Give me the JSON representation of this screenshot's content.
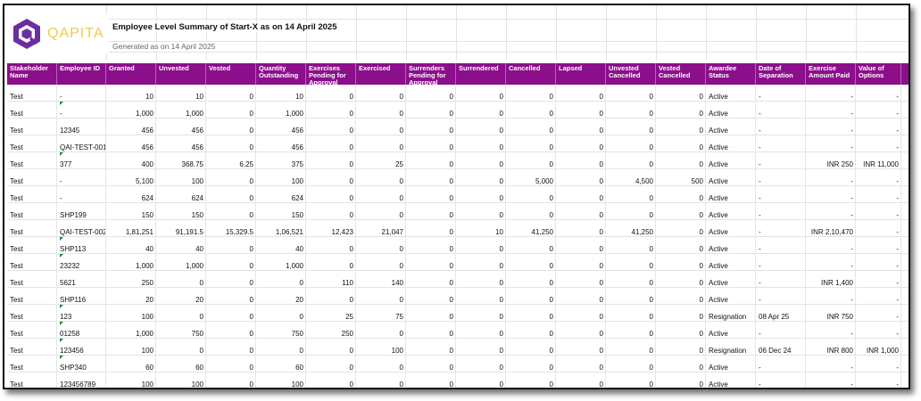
{
  "brand": {
    "name": "QAPITA",
    "logo_icon": "qapita-hexagon-logo-icon",
    "logo_color": "#6b2e9e",
    "text_color": "#f2c94c"
  },
  "report": {
    "title": "Employee Level Summary of Start-X as on 14 April 2025",
    "generated": "Generated as on 14 April 2025"
  },
  "colors": {
    "header_bg": "#8b0f8b",
    "header_text": "#ffffff",
    "flag": "#1a8a2e"
  },
  "columns": [
    "Stakeholder Name",
    "Employee ID",
    "Granted",
    "Unvested",
    "Vested",
    "Quantity Outstanding",
    "Exercises Pending for Approval",
    "Exercised",
    "Surrenders Pending for Approval",
    "Surrendered",
    "Cancelled",
    "Lapsed",
    "Unvested Cancelled",
    "Vested Cancelled",
    "Awardee Status",
    "Date of Separation",
    "Exercise Amount Paid",
    "Value of Options"
  ],
  "rows": [
    {
      "flag": false,
      "cells": [
        "Test",
        "-",
        "10",
        "10",
        "0",
        "10",
        "0",
        "0",
        "0",
        "0",
        "0",
        "0",
        "0",
        "0",
        "Active",
        "-",
        "-",
        "-"
      ]
    },
    {
      "flag": true,
      "cells": [
        "Test",
        "-",
        "1,000",
        "1,000",
        "0",
        "1,000",
        "0",
        "0",
        "0",
        "0",
        "0",
        "0",
        "0",
        "0",
        "Active",
        "-",
        "-",
        "-"
      ]
    },
    {
      "flag": false,
      "cells": [
        "Test",
        "12345",
        "456",
        "456",
        "0",
        "456",
        "0",
        "0",
        "0",
        "0",
        "0",
        "0",
        "0",
        "0",
        "Active",
        "-",
        "-",
        "-"
      ]
    },
    {
      "flag": false,
      "cells": [
        "Test",
        "QAI-TEST-001",
        "456",
        "456",
        "0",
        "456",
        "0",
        "0",
        "0",
        "0",
        "0",
        "0",
        "0",
        "0",
        "Active",
        "-",
        "-",
        "-"
      ]
    },
    {
      "flag": true,
      "cells": [
        "Test",
        "377",
        "400",
        "368.75",
        "6.25",
        "375",
        "0",
        "25",
        "0",
        "0",
        "0",
        "0",
        "0",
        "0",
        "Active",
        "-",
        "INR 250",
        "INR 11,000"
      ]
    },
    {
      "flag": false,
      "cells": [
        "Test",
        "-",
        "5,100",
        "100",
        "0",
        "100",
        "0",
        "0",
        "0",
        "0",
        "5,000",
        "0",
        "4,500",
        "500",
        "Active",
        "-",
        "-",
        "-"
      ]
    },
    {
      "flag": false,
      "cells": [
        "Test",
        "-",
        "624",
        "624",
        "0",
        "624",
        "0",
        "0",
        "0",
        "0",
        "0",
        "0",
        "0",
        "0",
        "Active",
        "-",
        "-",
        "-"
      ]
    },
    {
      "flag": false,
      "cells": [
        "Test",
        "SHP199",
        "150",
        "150",
        "0",
        "150",
        "0",
        "0",
        "0",
        "0",
        "0",
        "0",
        "0",
        "0",
        "Active",
        "-",
        "-",
        "-"
      ]
    },
    {
      "flag": false,
      "cells": [
        "Test",
        "QAI-TEST-002",
        "1,81,251",
        "91,191.5",
        "15,329.5",
        "1,06,521",
        "12,423",
        "21,047",
        "0",
        "10",
        "41,250",
        "0",
        "41,250",
        "0",
        "Active",
        "-",
        "INR 2,10,470",
        "-"
      ]
    },
    {
      "flag": true,
      "cells": [
        "Test",
        "SHP113",
        "40",
        "40",
        "0",
        "40",
        "0",
        "0",
        "0",
        "0",
        "0",
        "0",
        "0",
        "0",
        "Active",
        "-",
        "-",
        "-"
      ]
    },
    {
      "flag": true,
      "cells": [
        "Test",
        "23232",
        "1,000",
        "1,000",
        "0",
        "1,000",
        "0",
        "0",
        "0",
        "0",
        "0",
        "0",
        "0",
        "0",
        "Active",
        "-",
        "-",
        "-"
      ]
    },
    {
      "flag": false,
      "cells": [
        "Test",
        "5621",
        "250",
        "0",
        "0",
        "0",
        "110",
        "140",
        "0",
        "0",
        "0",
        "0",
        "0",
        "0",
        "Active",
        "-",
        "INR 1,400",
        "-"
      ]
    },
    {
      "flag": false,
      "cells": [
        "Test",
        "SHP116",
        "20",
        "20",
        "0",
        "20",
        "0",
        "0",
        "0",
        "0",
        "0",
        "0",
        "0",
        "0",
        "Active",
        "-",
        "-",
        "-"
      ]
    },
    {
      "flag": true,
      "cells": [
        "Test",
        "123",
        "100",
        "0",
        "0",
        "0",
        "25",
        "75",
        "0",
        "0",
        "0",
        "0",
        "0",
        "0",
        "Resignation",
        "08 Apr 25",
        "INR 750",
        "-"
      ]
    },
    {
      "flag": true,
      "cells": [
        "Test",
        "01258",
        "1,000",
        "750",
        "0",
        "750",
        "250",
        "0",
        "0",
        "0",
        "0",
        "0",
        "0",
        "0",
        "Active",
        "-",
        "-",
        "-"
      ]
    },
    {
      "flag": true,
      "cells": [
        "Test",
        "123456",
        "100",
        "0",
        "0",
        "0",
        "0",
        "100",
        "0",
        "0",
        "0",
        "0",
        "0",
        "0",
        "Resignation",
        "06 Dec 24",
        "INR 800",
        "INR 1,000"
      ]
    },
    {
      "flag": true,
      "cells": [
        "Test",
        "SHP340",
        "60",
        "60",
        "0",
        "60",
        "0",
        "0",
        "0",
        "0",
        "0",
        "0",
        "0",
        "0",
        "Active",
        "-",
        "-",
        "-"
      ]
    },
    {
      "flag": false,
      "cells": [
        "Test",
        "123456789",
        "100",
        "100",
        "0",
        "100",
        "0",
        "0",
        "0",
        "0",
        "0",
        "0",
        "0",
        "0",
        "Active",
        "-",
        "-",
        "-"
      ]
    }
  ]
}
